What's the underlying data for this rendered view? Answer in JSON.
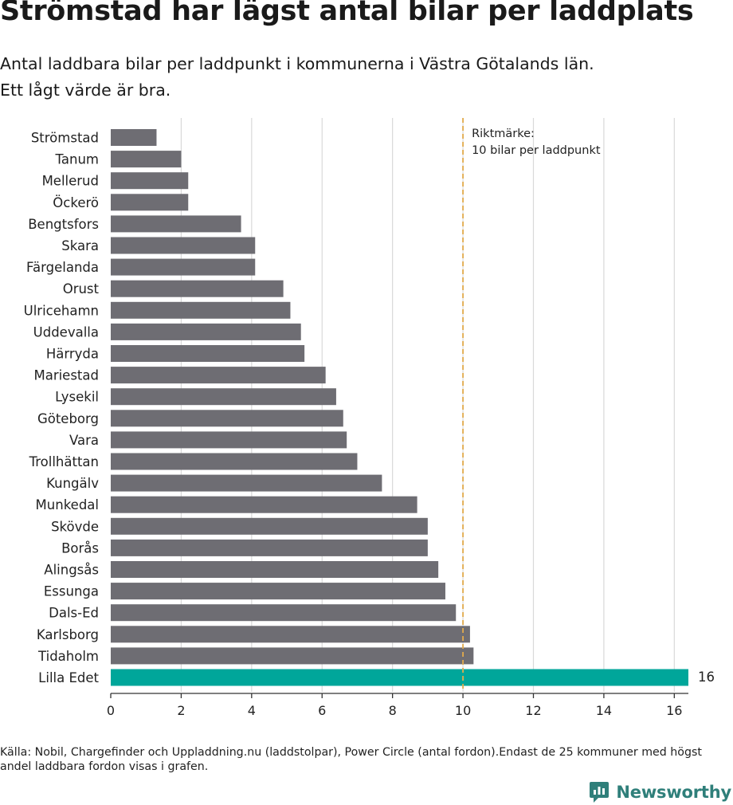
{
  "title": "Strömstad har lägst antal bilar per laddplats",
  "subtitle_line1": "Antal laddbara bilar per laddpunkt i kommunerna i Västra Götalands län.",
  "subtitle_line2": "Ett lågt värde är bra.",
  "source": "Källa: Nobil, Chargefinder och Uppladdning.nu (laddstolpar), Power Circle (antal fordon).Endast de 25 kommuner med högst andel laddbara fordon visas i grafen.",
  "logo_text": "Newsworthy",
  "colors": {
    "bar": "#6e6d73",
    "highlight": "#00a69a",
    "reference": "#e2ab4c",
    "grid": "#d9d9d9",
    "axis": "#333333",
    "logo": "#2f7f7a"
  },
  "chart_data": {
    "type": "bar",
    "orientation": "horizontal",
    "categories": [
      "Strömstad",
      "Tanum",
      "Mellerud",
      "Öckerö",
      "Bengtsfors",
      "Skara",
      "Färgelanda",
      "Orust",
      "Ulricehamn",
      "Uddevalla",
      "Härryda",
      "Mariestad",
      "Lysekil",
      "Göteborg",
      "Vara",
      "Trollhättan",
      "Kungälv",
      "Munkedal",
      "Skövde",
      "Borås",
      "Alingsås",
      "Essunga",
      "Dals-Ed",
      "Karlsborg",
      "Tidaholm",
      "Lilla Edet"
    ],
    "values": [
      1.3,
      2.0,
      2.2,
      2.2,
      3.7,
      4.1,
      4.1,
      4.9,
      5.1,
      5.4,
      5.5,
      6.1,
      6.4,
      6.6,
      6.7,
      7.0,
      7.7,
      8.7,
      9.0,
      9.0,
      9.3,
      9.5,
      9.8,
      10.2,
      10.3,
      16.4
    ],
    "highlight_index": 25,
    "highlight_label": "16",
    "xlim": [
      0,
      16.4
    ],
    "xticks": [
      0,
      2,
      4,
      6,
      8,
      10,
      12,
      14,
      16
    ],
    "grid": true,
    "reference_line": {
      "value": 10,
      "label_line1": "Riktmärke:",
      "label_line2": "10 bilar per laddpunkt"
    }
  }
}
